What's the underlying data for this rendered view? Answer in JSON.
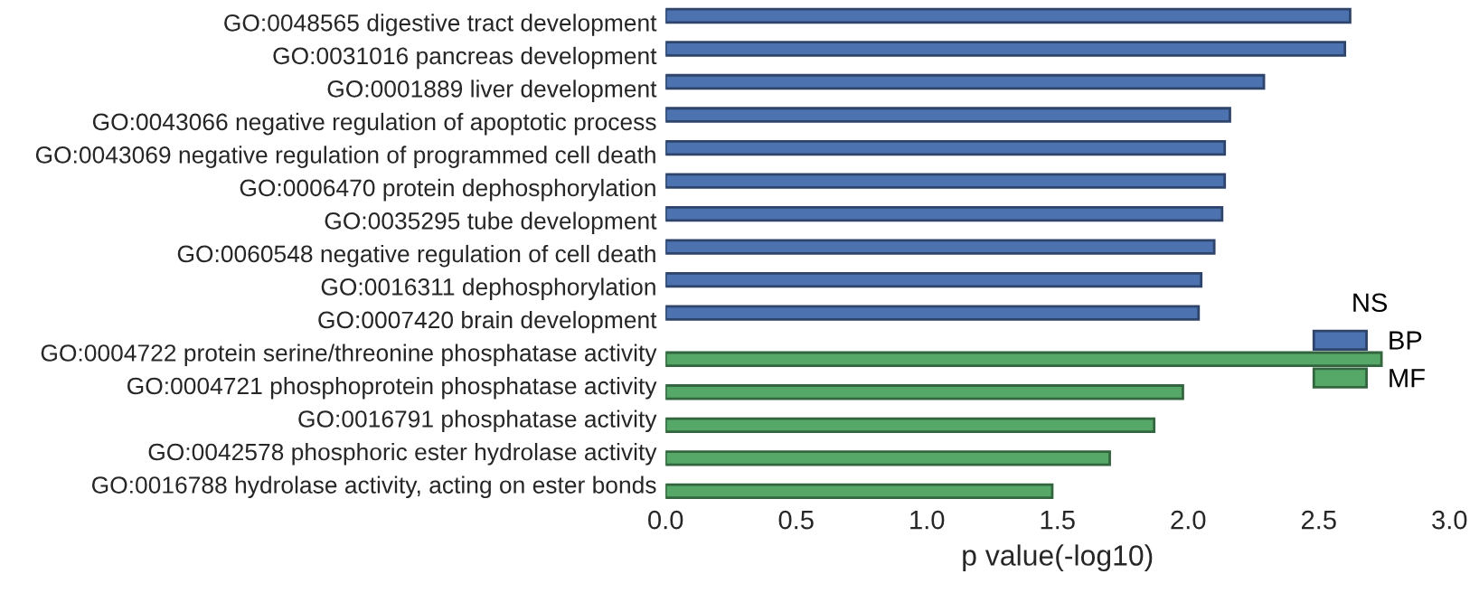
{
  "chart_data": {
    "type": "bar",
    "orientation": "horizontal",
    "xlabel": "p value(-log10)",
    "legend_title": "NS",
    "legend": "right",
    "grid": false,
    "categories": [
      "GO:0048565 digestive tract development",
      "GO:0031016 pancreas development",
      "GO:0001889 liver development",
      "GO:0043066 negative regulation of apoptotic process",
      "GO:0043069 negative regulation of programmed cell death",
      "GO:0006470 protein dephosphorylation",
      "GO:0035295 tube development",
      "GO:0060548 negative regulation of cell death",
      "GO:0016311 dephosphorylation",
      "GO:0007420 brain development",
      "GO:0004722 protein serine/threonine phosphatase activity",
      "GO:0004721 phosphoprotein phosphatase activity",
      "GO:0016791 phosphatase activity",
      "GO:0042578 phosphoric ester hydrolase activity",
      "GO:0016788 hydrolase activity, acting on ester bonds"
    ],
    "series": [
      {
        "name": "BP",
        "color": "#4c72b0",
        "values": [
          2.62,
          2.6,
          2.29,
          2.16,
          2.14,
          2.14,
          2.13,
          2.1,
          2.05,
          2.04,
          null,
          null,
          null,
          null,
          null
        ]
      },
      {
        "name": "MF",
        "color": "#55a868",
        "values": [
          null,
          null,
          null,
          null,
          null,
          null,
          null,
          null,
          null,
          null,
          2.74,
          1.98,
          1.87,
          1.7,
          1.48
        ]
      }
    ],
    "xlim": [
      0,
      3.0
    ],
    "xticks": [
      {
        "value": 0,
        "label": "0.0"
      },
      0.5,
      {
        "value": 1,
        "label": "1.0"
      },
      1.5,
      {
        "value": 2,
        "label": "2.0"
      },
      2.5,
      {
        "value": 3,
        "label": "3.0"
      }
    ]
  }
}
